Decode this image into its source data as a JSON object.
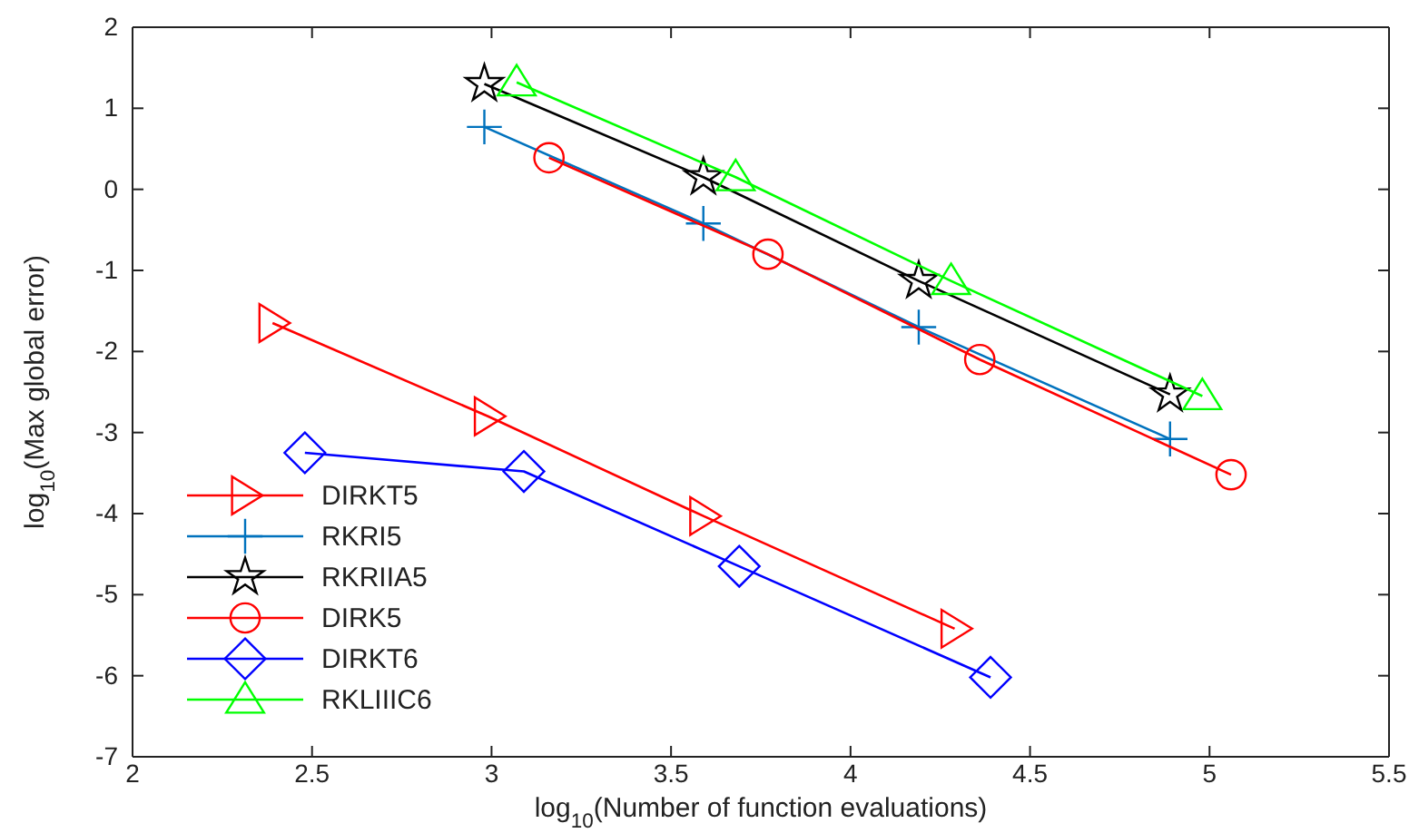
{
  "chart_data": {
    "type": "line",
    "xlabel": "log$_{10}$(Number of function evaluations)",
    "ylabel": "log$_{10}$(Max global error)",
    "xlim": [
      2,
      5.5
    ],
    "ylim": [
      -7,
      2
    ],
    "xticks": [
      2,
      2.5,
      3,
      3.5,
      4,
      4.5,
      5,
      5.5
    ],
    "yticks": [
      -7,
      -6,
      -5,
      -4,
      -3,
      -2,
      -1,
      0,
      1,
      2
    ],
    "grid": false,
    "legend": "bottom left",
    "series": [
      {
        "name": "DIRKT5",
        "color": "#ff0000",
        "marker": "triangle-right",
        "x": [
          2.39,
          2.99,
          3.59,
          4.29
        ],
        "values": [
          -1.65,
          -2.8,
          -4.03,
          -5.42
        ]
      },
      {
        "name": "RKRI5",
        "color": "#0072bd",
        "marker": "cross",
        "x": [
          2.98,
          3.59,
          4.19,
          4.89
        ],
        "values": [
          0.77,
          -0.42,
          -1.7,
          -3.08
        ]
      },
      {
        "name": "RKRIIA5",
        "color": "#000000",
        "marker": "star",
        "x": [
          2.98,
          3.59,
          4.19,
          4.89
        ],
        "values": [
          1.3,
          0.15,
          -1.13,
          -2.53
        ]
      },
      {
        "name": "DIRK5",
        "color": "#ff0000",
        "marker": "circle",
        "x": [
          3.16,
          3.77,
          4.36,
          5.06
        ],
        "values": [
          0.39,
          -0.8,
          -2.1,
          -3.52
        ]
      },
      {
        "name": "DIRKT6",
        "color": "#0000ff",
        "marker": "diamond",
        "x": [
          2.48,
          3.09,
          3.69,
          4.39
        ],
        "values": [
          -3.25,
          -3.48,
          -4.65,
          -6.02
        ]
      },
      {
        "name": "RKLIIIC6",
        "color": "#00ff00",
        "marker": "triangle",
        "x": [
          3.07,
          3.68,
          4.28,
          4.98
        ],
        "values": [
          1.32,
          0.15,
          -1.13,
          -2.55
        ]
      }
    ]
  }
}
